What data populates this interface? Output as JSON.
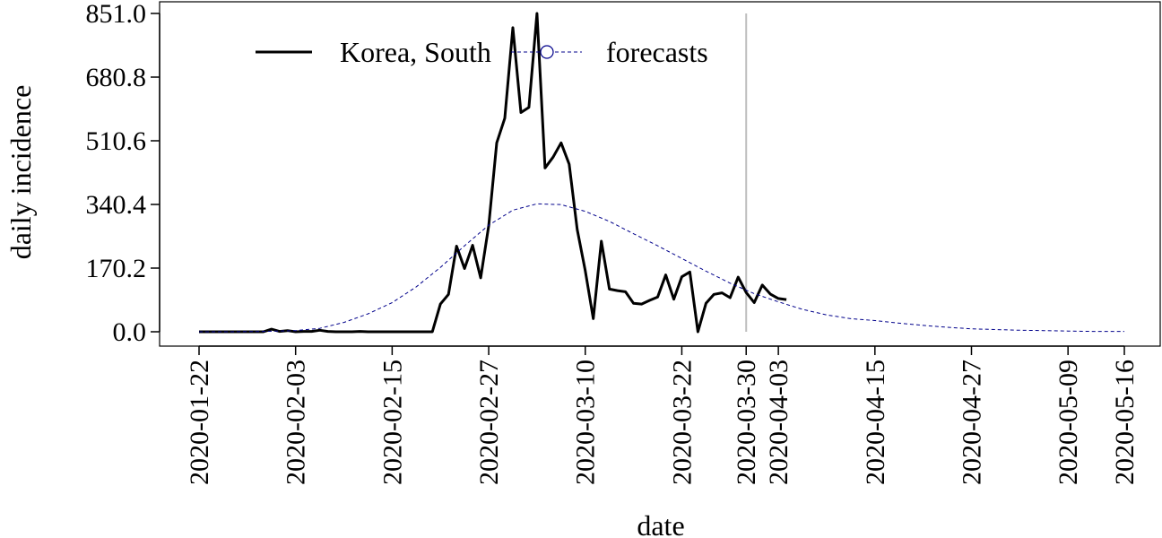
{
  "chart_data": {
    "type": "line",
    "xlabel": "date",
    "ylabel": "daily incidence",
    "x_range": [
      "2020-01-22",
      "2020-05-16"
    ],
    "ylim": [
      0,
      851.0
    ],
    "y_ticks": [
      "0.0",
      "170.2",
      "340.4",
      "510.6",
      "680.8",
      "851.0"
    ],
    "x_ticks": [
      "2020-01-22",
      "2020-02-03",
      "2020-02-15",
      "2020-02-27",
      "2020-03-10",
      "2020-03-22",
      "2020-03-30",
      "2020-04-03",
      "2020-04-15",
      "2020-04-27",
      "2020-05-09",
      "2020-05-16"
    ],
    "vline_date": "2020-03-30",
    "grid": false,
    "legend_position": "top-left",
    "colors": {
      "observed": "#000000",
      "forecasts": "#00008b",
      "vline": "#bebebe"
    },
    "series": [
      {
        "name": "Korea, South",
        "style": "solid",
        "points": [
          [
            "2020-01-22",
            0
          ],
          [
            "2020-01-23",
            0
          ],
          [
            "2020-01-24",
            0
          ],
          [
            "2020-01-25",
            0
          ],
          [
            "2020-01-26",
            0
          ],
          [
            "2020-01-27",
            0
          ],
          [
            "2020-01-28",
            0
          ],
          [
            "2020-01-29",
            0
          ],
          [
            "2020-01-30",
            0
          ],
          [
            "2020-01-31",
            7
          ],
          [
            "2020-02-01",
            1
          ],
          [
            "2020-02-02",
            3
          ],
          [
            "2020-02-03",
            0
          ],
          [
            "2020-02-04",
            1
          ],
          [
            "2020-02-05",
            1
          ],
          [
            "2020-02-06",
            4
          ],
          [
            "2020-02-07",
            1
          ],
          [
            "2020-02-08",
            0
          ],
          [
            "2020-02-09",
            0
          ],
          [
            "2020-02-10",
            0
          ],
          [
            "2020-02-11",
            1
          ],
          [
            "2020-02-12",
            0
          ],
          [
            "2020-02-13",
            0
          ],
          [
            "2020-02-14",
            0
          ],
          [
            "2020-02-15",
            0
          ],
          [
            "2020-02-16",
            0
          ],
          [
            "2020-02-17",
            0
          ],
          [
            "2020-02-18",
            0
          ],
          [
            "2020-02-19",
            0
          ],
          [
            "2020-02-20",
            0
          ],
          [
            "2020-02-21",
            74
          ],
          [
            "2020-02-22",
            100
          ],
          [
            "2020-02-23",
            229
          ],
          [
            "2020-02-24",
            169
          ],
          [
            "2020-02-25",
            231
          ],
          [
            "2020-02-26",
            144
          ],
          [
            "2020-02-27",
            284
          ],
          [
            "2020-02-28",
            505
          ],
          [
            "2020-02-29",
            571
          ],
          [
            "2020-03-01",
            813
          ],
          [
            "2020-03-02",
            586
          ],
          [
            "2020-03-03",
            600
          ],
          [
            "2020-03-04",
            851
          ],
          [
            "2020-03-05",
            438
          ],
          [
            "2020-03-06",
            467
          ],
          [
            "2020-03-07",
            505
          ],
          [
            "2020-03-08",
            448
          ],
          [
            "2020-03-09",
            273
          ],
          [
            "2020-03-10",
            164
          ],
          [
            "2020-03-11",
            35
          ],
          [
            "2020-03-12",
            242
          ],
          [
            "2020-03-13",
            114
          ],
          [
            "2020-03-14",
            110
          ],
          [
            "2020-03-15",
            107
          ],
          [
            "2020-03-16",
            76
          ],
          [
            "2020-03-17",
            74
          ],
          [
            "2020-03-18",
            84
          ],
          [
            "2020-03-19",
            93
          ],
          [
            "2020-03-20",
            152
          ],
          [
            "2020-03-21",
            87
          ],
          [
            "2020-03-22",
            147
          ],
          [
            "2020-03-23",
            160
          ],
          [
            "2020-03-24",
            0
          ],
          [
            "2020-03-25",
            76
          ],
          [
            "2020-03-26",
            100
          ],
          [
            "2020-03-27",
            104
          ],
          [
            "2020-03-28",
            91
          ],
          [
            "2020-03-29",
            146
          ],
          [
            "2020-03-30",
            105
          ],
          [
            "2020-03-31",
            78
          ],
          [
            "2020-04-01",
            125
          ],
          [
            "2020-04-02",
            101
          ],
          [
            "2020-04-03",
            89
          ],
          [
            "2020-04-04",
            86
          ]
        ]
      },
      {
        "name": "forecasts",
        "style": "dashed",
        "marker": "open-circle",
        "points": [
          [
            "2020-01-22",
            0
          ],
          [
            "2020-01-26",
            0
          ],
          [
            "2020-01-30",
            1
          ],
          [
            "2020-02-03",
            3
          ],
          [
            "2020-02-06",
            9
          ],
          [
            "2020-02-09",
            25
          ],
          [
            "2020-02-12",
            48
          ],
          [
            "2020-02-15",
            78
          ],
          [
            "2020-02-18",
            120
          ],
          [
            "2020-02-21",
            172
          ],
          [
            "2020-02-24",
            230
          ],
          [
            "2020-02-27",
            285
          ],
          [
            "2020-03-01",
            325
          ],
          [
            "2020-03-04",
            342
          ],
          [
            "2020-03-07",
            340
          ],
          [
            "2020-03-10",
            322
          ],
          [
            "2020-03-13",
            295
          ],
          [
            "2020-03-16",
            262
          ],
          [
            "2020-03-19",
            230
          ],
          [
            "2020-03-22",
            196
          ],
          [
            "2020-03-25",
            162
          ],
          [
            "2020-03-28",
            130
          ],
          [
            "2020-03-31",
            102
          ],
          [
            "2020-04-03",
            80
          ],
          [
            "2020-04-06",
            60
          ],
          [
            "2020-04-09",
            45
          ],
          [
            "2020-04-12",
            35
          ],
          [
            "2020-04-15",
            30
          ],
          [
            "2020-04-18",
            23
          ],
          [
            "2020-04-21",
            17
          ],
          [
            "2020-04-24",
            12
          ],
          [
            "2020-04-27",
            8
          ],
          [
            "2020-04-30",
            6
          ],
          [
            "2020-05-03",
            4
          ],
          [
            "2020-05-06",
            3
          ],
          [
            "2020-05-09",
            2
          ],
          [
            "2020-05-12",
            1
          ],
          [
            "2020-05-16",
            1
          ]
        ]
      }
    ]
  }
}
